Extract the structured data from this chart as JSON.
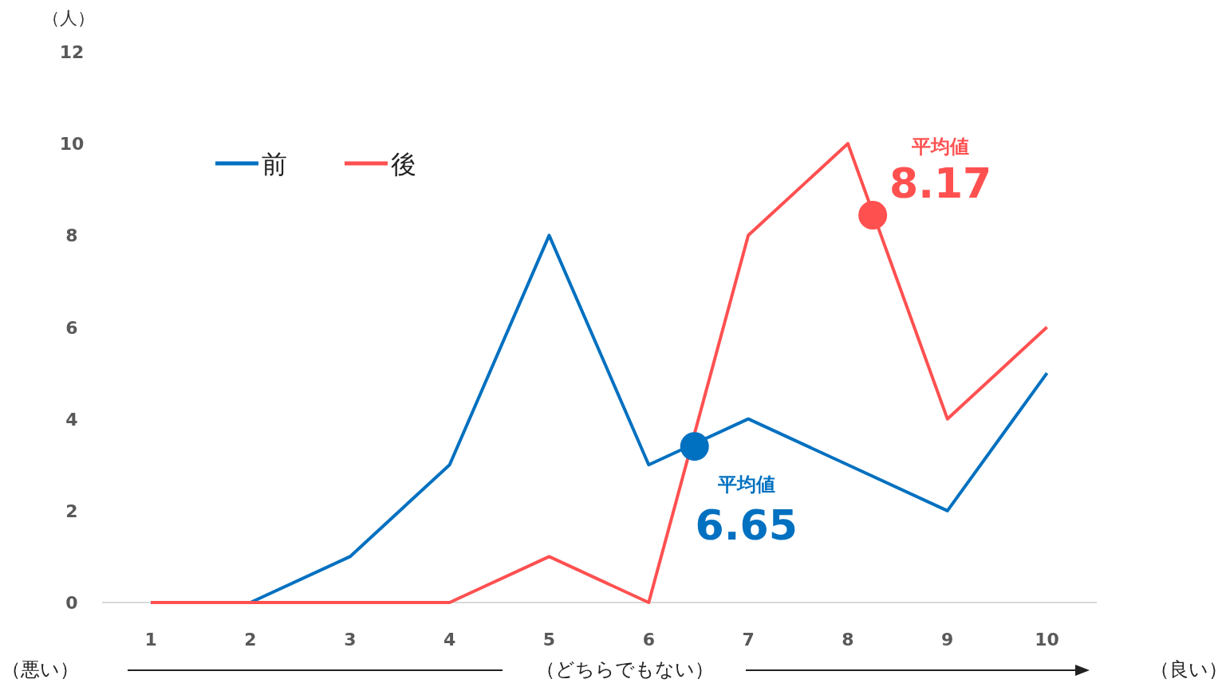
{
  "chart_data": {
    "type": "line",
    "ylabel": "（人）",
    "x": [
      1,
      2,
      3,
      4,
      5,
      6,
      7,
      8,
      9,
      10
    ],
    "series": [
      {
        "name": "前",
        "color": "#0070c0",
        "values": [
          0,
          0,
          1,
          3,
          8,
          3,
          4,
          3,
          2,
          5
        ]
      },
      {
        "name": "後",
        "color": "#ff5050",
        "values": [
          0,
          0,
          0,
          0,
          1,
          0,
          8,
          10,
          4,
          6
        ]
      },
      {
        "type": "scatter",
        "color": "#0070c0",
        "x": [
          6.46
        ],
        "values": [
          3.4
        ]
      },
      {
        "type": "scatter",
        "color": "#ff5050",
        "x": [
          8.25
        ],
        "values": [
          8.44
        ]
      }
    ],
    "xlim": [
      0.51,
      10.5
    ],
    "xticks": [
      1,
      2,
      3,
      4,
      5,
      6,
      7,
      8,
      9,
      10
    ],
    "ylim": [
      0,
      12
    ],
    "yticks": [
      0,
      2,
      4,
      6,
      8,
      10,
      12
    ],
    "legend": "top left",
    "annotations": [
      "（悪い）",
      "（どちらでもない）",
      "（良い）",
      "平均値\n6.65",
      "平均値\n8.17"
    ]
  }
}
